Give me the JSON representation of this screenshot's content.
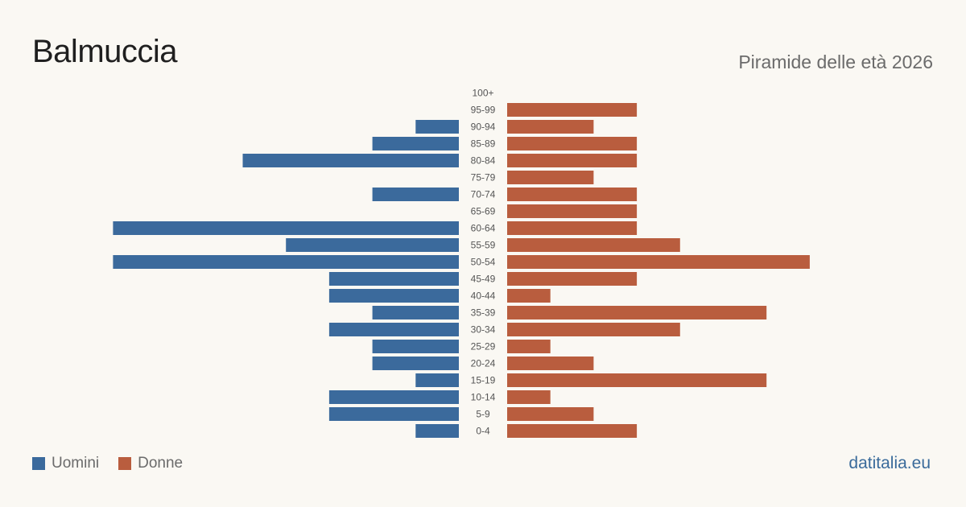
{
  "header": {
    "title": "Balmuccia",
    "subtitle": "Piramide delle età 2026"
  },
  "legend": {
    "male_label": "Uomini",
    "female_label": "Donne"
  },
  "brand": "datitalia.eu",
  "colors": {
    "male": "#3b6a9c",
    "female": "#b95d3e",
    "background": "#faf8f3",
    "age_label": "#555555"
  },
  "chart_data": {
    "type": "bar",
    "orientation": "horizontal-pyramid",
    "title": "Balmuccia",
    "subtitle": "Piramide delle età 2026",
    "categories": [
      "100+",
      "95-99",
      "90-94",
      "85-89",
      "80-84",
      "75-79",
      "70-74",
      "65-69",
      "60-64",
      "55-59",
      "50-54",
      "45-49",
      "40-44",
      "35-39",
      "30-34",
      "25-29",
      "20-24",
      "15-19",
      "10-14",
      "5-9",
      "0-4"
    ],
    "series": [
      {
        "name": "Uomini",
        "values": [
          0,
          0,
          1,
          2,
          5,
          0,
          2,
          0,
          8,
          4,
          8,
          3,
          3,
          2,
          3,
          2,
          2,
          1,
          3,
          3,
          1
        ]
      },
      {
        "name": "Donne",
        "values": [
          0,
          3,
          2,
          3,
          3,
          2,
          3,
          3,
          3,
          4,
          7,
          3,
          1,
          6,
          4,
          1,
          2,
          6,
          1,
          2,
          3
        ]
      }
    ],
    "legend_position": "bottom-left"
  }
}
